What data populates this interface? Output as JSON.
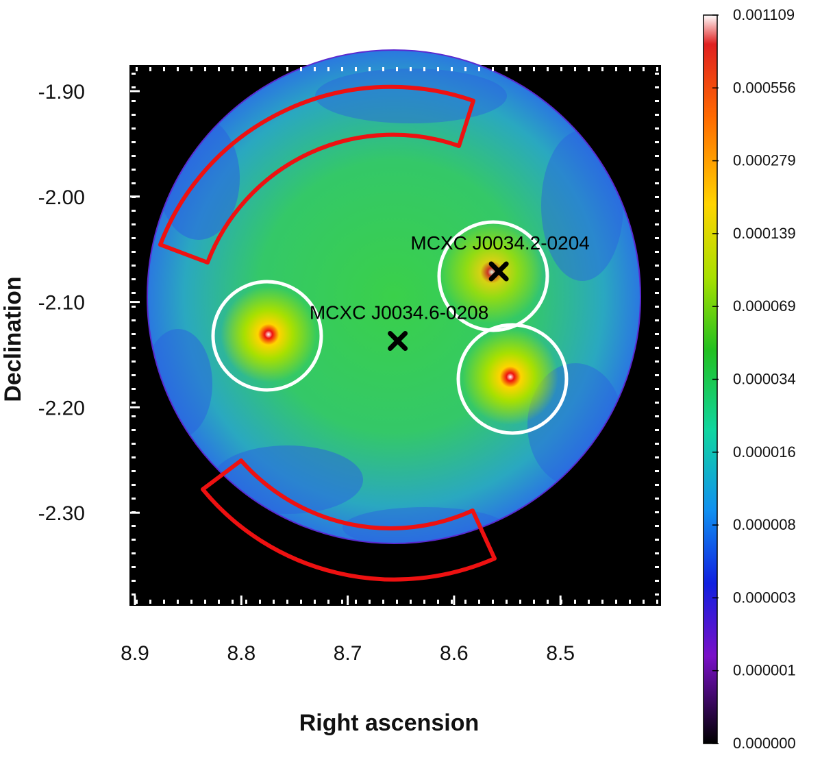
{
  "figure": {
    "x_axis_title": "Right ascension",
    "y_axis_title": "Declination",
    "x_ticks": [
      {
        "value": 8.9,
        "label": "8.9"
      },
      {
        "value": 8.8,
        "label": "8.8"
      },
      {
        "value": 8.7,
        "label": "8.7"
      },
      {
        "value": 8.6,
        "label": "8.6"
      },
      {
        "value": 8.5,
        "label": "8.5"
      }
    ],
    "y_ticks": [
      {
        "value": -1.9,
        "label": "-1.90"
      },
      {
        "value": -2.0,
        "label": "-2.00"
      },
      {
        "value": -2.1,
        "label": "-2.10"
      },
      {
        "value": -2.2,
        "label": "-2.20"
      },
      {
        "value": -2.3,
        "label": "-2.30"
      }
    ],
    "sources": [
      {
        "name": "MCXC J0034.2-0204",
        "ra": 8.558,
        "dec": -2.071
      },
      {
        "name": "MCXC J0034.6-0208",
        "ra": 8.653,
        "dec": -2.137
      }
    ],
    "exclusion_circles_color": "#ffffff",
    "background_annulus_color": "#ee1111",
    "colorbar": {
      "labels": [
        "0.001109",
        "0.000556",
        "0.000279",
        "0.000139",
        "0.000069",
        "0.000034",
        "0.000016",
        "0.000008",
        "0.000003",
        "0.000001",
        "0.000000"
      ],
      "colors": [
        "#ffffff",
        "#cc0000",
        "#ff6a00",
        "#ffd400",
        "#a8e000",
        "#22c020",
        "#10d6a0",
        "#1090f0",
        "#1020e0",
        "#7a10c8",
        "#000000"
      ]
    }
  }
}
